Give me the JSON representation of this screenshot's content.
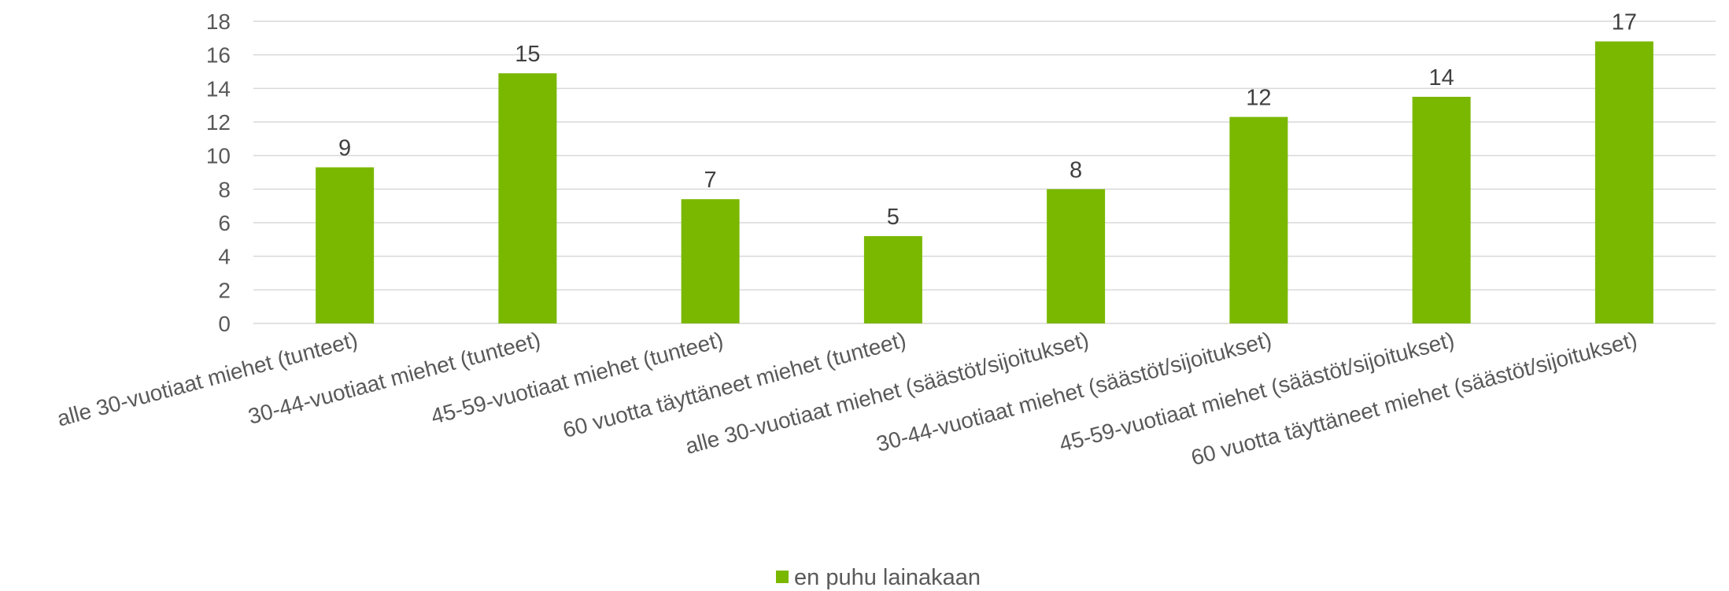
{
  "chart_data": {
    "type": "bar",
    "categories": [
      "alle 30-vuotiaat miehet (tunteet)",
      "30-44-vuotiaat miehet (tunteet)",
      "45-59-vuotiaat miehet (tunteet)",
      "60 vuotta täyttäneet miehet (tunteet)",
      "alle 30-vuotiaat miehet (säästöt/sijoitukset)",
      "30-44-vuotiaat miehet (säästöt/sijoitukset)",
      "45-59-vuotiaat miehet (säästöt/sijoitukset)",
      "60 vuotta täyttäneet miehet (säästöt/sijoitukset)"
    ],
    "series": [
      {
        "name": "en puhu lainakaan",
        "values": [
          9.3,
          14.9,
          7.4,
          5.2,
          8.0,
          12.3,
          13.5,
          16.8
        ],
        "labels": [
          "9",
          "15",
          "7",
          "5",
          "8",
          "12",
          "14",
          "17"
        ]
      }
    ],
    "yticks": [
      "0",
      "2",
      "4",
      "6",
      "8",
      "10",
      "12",
      "14",
      "16",
      "18"
    ],
    "ylim": [
      0,
      18
    ],
    "grid": true,
    "legend_position": "bottom",
    "colors": {
      "bar": "#7ab800",
      "grid": "#d9d9d9",
      "text": "#595959"
    }
  }
}
